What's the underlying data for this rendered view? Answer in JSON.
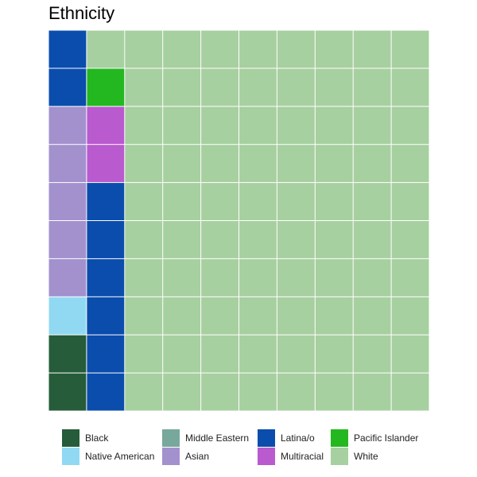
{
  "chart_data": {
    "type": "waffle",
    "title": "Ethnicity",
    "grid": {
      "rows": 10,
      "cols": 10
    },
    "categories": [
      {
        "name": "Black",
        "color": "#265C3A",
        "value": 2
      },
      {
        "name": "Native American",
        "color": "#91D9F2",
        "value": 1
      },
      {
        "name": "Middle Eastern",
        "color": "#78A89B",
        "value": 0
      },
      {
        "name": "Asian",
        "color": "#A391CE",
        "value": 5
      },
      {
        "name": "Latina/o",
        "color": "#0B4DAD",
        "value": 8
      },
      {
        "name": "Multiracial",
        "color": "#B95ACF",
        "value": 2
      },
      {
        "name": "Pacific Islander",
        "color": "#24B820",
        "value": 1
      },
      {
        "name": "White",
        "color": "#A7D0A0",
        "value": 81
      }
    ],
    "legend_position": "bottom"
  }
}
